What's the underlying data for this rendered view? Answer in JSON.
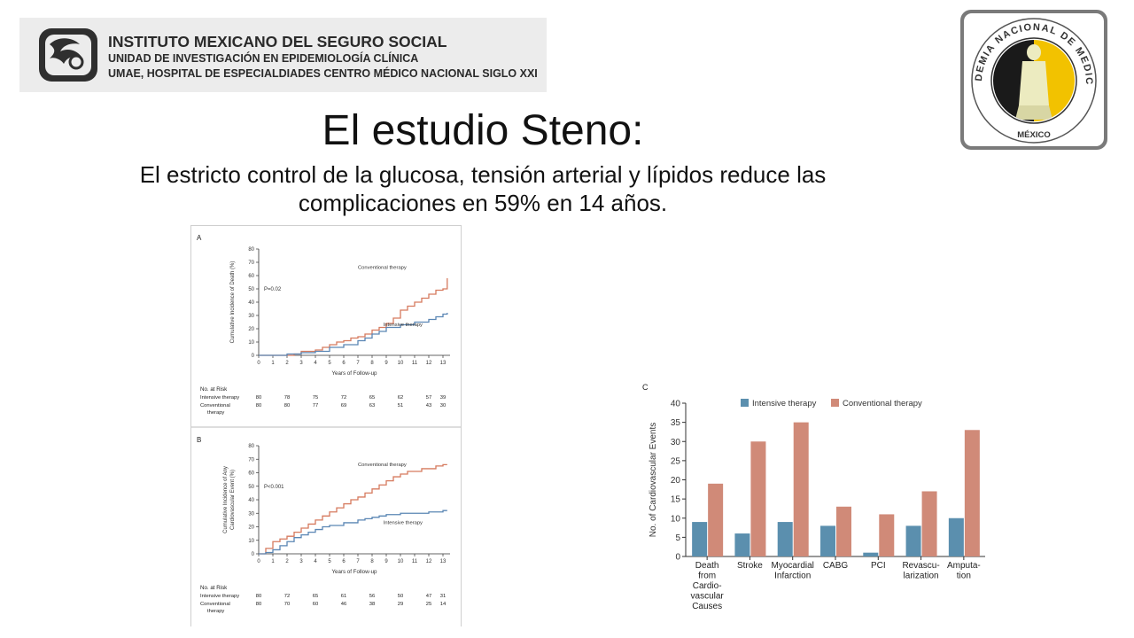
{
  "header": {
    "line1": "INSTITUTO MEXICANO DEL SEGURO SOCIAL",
    "line2": "UNIDAD DE INVESTIGACIÓN EN EPIDEMIOLOGÍA CLÍNICA",
    "line3": "UMAE, HOSPITAL DE ESPECIALDIADES CENTRO MÉDICO NACIONAL SIGLO XXI"
  },
  "seal": {
    "top_text": "ACADEMIA NACIONAL DE MEDICINA",
    "bottom_text": "MÉXICO"
  },
  "slide": {
    "title": "El estudio Steno:",
    "subtitle_line1": "El estricto control de la glucosa, tensión arterial y lípidos reduce las",
    "subtitle_line2": "complicaciones en 59% en 14 años."
  },
  "colors": {
    "intensive": "#5b8fae",
    "conventional": "#d08a78",
    "intensive_line": "#5a86b4",
    "conventional_line": "#d67a5e"
  },
  "chart_data": [
    {
      "type": "line",
      "panel_label": "A",
      "ylabel": "Cumulative Incidence of Death (%)",
      "xlabel": "Years of Follow-up",
      "xlim": [
        0,
        13.5
      ],
      "ylim": [
        0,
        80
      ],
      "x_ticks": [
        0,
        1,
        2,
        3,
        4,
        5,
        6,
        7,
        8,
        9,
        10,
        11,
        12,
        13
      ],
      "y_ticks": [
        0,
        10,
        20,
        30,
        40,
        50,
        60,
        70,
        80
      ],
      "annotation": "P=0.02",
      "series": [
        {
          "name": "Conventional therapy",
          "x": [
            0,
            1.5,
            2.5,
            3,
            4,
            4.5,
            5,
            5.5,
            6,
            6.5,
            7,
            7.5,
            8,
            8.5,
            9,
            9.5,
            10,
            10.5,
            11,
            11.5,
            12,
            12.5,
            13,
            13.3
          ],
          "y": [
            0,
            0,
            1,
            3,
            4,
            6,
            8,
            10,
            11,
            13,
            14,
            16,
            19,
            21,
            24,
            28,
            34,
            37,
            40,
            43,
            46,
            49,
            50,
            58
          ]
        },
        {
          "name": "Intensive therapy",
          "x": [
            0,
            1.5,
            2,
            3,
            4,
            5,
            6,
            7,
            7.5,
            8,
            8.5,
            9,
            10,
            11,
            12,
            12.5,
            13,
            13.3
          ],
          "y": [
            0,
            0,
            1,
            2,
            3,
            6,
            8,
            11,
            13,
            16,
            18,
            21,
            23,
            25,
            27,
            29,
            31,
            32
          ]
        }
      ],
      "risk_table": {
        "header": "No. at Risk",
        "rows": [
          {
            "label": "Intensive therapy",
            "values": [
              "80",
              "78",
              "75",
              "72",
              "65",
              "62",
              "57",
              "39"
            ]
          },
          {
            "label": "Conventional",
            "label2": "therapy",
            "values": [
              "80",
              "80",
              "77",
              "69",
              "63",
              "51",
              "43",
              "30"
            ]
          }
        ]
      }
    },
    {
      "type": "line",
      "panel_label": "B",
      "ylabel": "Cumulative Incidence of Any Cardiovascular Event (%)",
      "ylabel_line1": "Cumulative Incidence of Any",
      "ylabel_line2": "Cardiovascular Event (%)",
      "xlabel": "Years of Follow-up",
      "xlim": [
        0,
        13.5
      ],
      "ylim": [
        0,
        80
      ],
      "x_ticks": [
        0,
        1,
        2,
        3,
        4,
        5,
        6,
        7,
        8,
        9,
        10,
        11,
        12,
        13
      ],
      "y_ticks": [
        0,
        10,
        20,
        30,
        40,
        50,
        60,
        70,
        80
      ],
      "annotation": "P<0.001",
      "series": [
        {
          "name": "Conventional therapy",
          "x": [
            0,
            0.5,
            1,
            1.5,
            2,
            2.5,
            3,
            3.5,
            4,
            4.5,
            5,
            5.5,
            6,
            6.5,
            7,
            7.5,
            8,
            8.5,
            9,
            9.5,
            10,
            10.5,
            11,
            11.5,
            12,
            12.5,
            13,
            13.3
          ],
          "y": [
            0,
            4,
            9,
            11,
            13,
            16,
            19,
            22,
            25,
            28,
            31,
            34,
            37,
            40,
            42,
            45,
            48,
            51,
            54,
            57,
            59,
            61,
            61,
            63,
            63,
            65,
            66,
            66
          ]
        },
        {
          "name": "Intensive therapy",
          "x": [
            0,
            0.5,
            1,
            1.5,
            2,
            2.5,
            3,
            3.5,
            4,
            4.5,
            5,
            6,
            7,
            7.5,
            8,
            8.5,
            9,
            10,
            11,
            12,
            13,
            13.3
          ],
          "y": [
            0,
            1,
            3,
            6,
            9,
            12,
            14,
            16,
            18,
            20,
            21,
            23,
            25,
            26,
            27,
            28,
            29,
            30,
            30,
            31,
            32,
            32
          ]
        }
      ],
      "risk_table": {
        "header": "No. at Risk",
        "rows": [
          {
            "label": "Intensive therapy",
            "values": [
              "80",
              "72",
              "65",
              "61",
              "56",
              "50",
              "47",
              "31"
            ]
          },
          {
            "label": "Conventional",
            "label2": "therapy",
            "values": [
              "80",
              "70",
              "60",
              "46",
              "38",
              "29",
              "25",
              "14"
            ]
          }
        ]
      }
    },
    {
      "type": "bar",
      "panel_label": "C",
      "ylabel": "No. of Cardiovascular Events",
      "ylim": [
        0,
        40
      ],
      "y_ticks": [
        0,
        5,
        10,
        15,
        20,
        25,
        30,
        35,
        40
      ],
      "categories": [
        [
          "Death",
          "from",
          "Cardio-",
          "vascular",
          "Causes"
        ],
        [
          "Stroke"
        ],
        [
          "Myocardial",
          "Infarction"
        ],
        [
          "CABG"
        ],
        [
          "PCI"
        ],
        [
          "Revascu-",
          "larization"
        ],
        [
          "Amputa-",
          "tion"
        ]
      ],
      "series": [
        {
          "name": "Intensive therapy",
          "values": [
            9,
            6,
            9,
            8,
            1,
            8,
            10
          ]
        },
        {
          "name": "Conventional therapy",
          "values": [
            19,
            30,
            35,
            13,
            11,
            17,
            33
          ]
        }
      ]
    }
  ]
}
